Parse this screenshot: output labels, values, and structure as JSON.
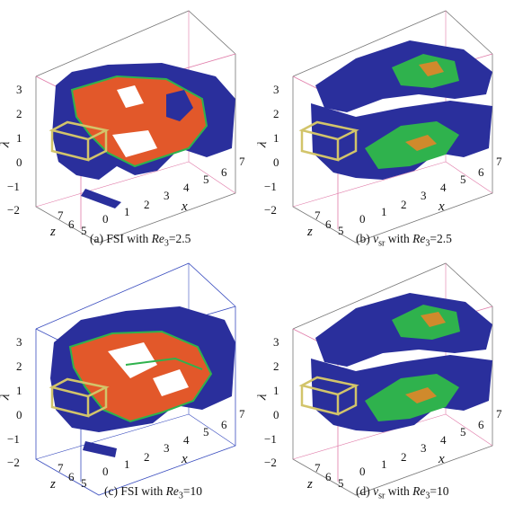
{
  "panels": [
    {
      "id": "a",
      "caption_prefix": "(a) FSI with ",
      "caption_sym": "Re",
      "caption_sub": "3",
      "caption_value": "=2.5",
      "kind": "FSI"
    },
    {
      "id": "b",
      "caption_prefix": "(b) ",
      "caption_sym": "Re",
      "caption_sub": "3",
      "caption_value": "=2.5",
      "nu": "ν",
      "nu_sub": "sr",
      "caption_with": " with ",
      "kind": "nu"
    },
    {
      "id": "c",
      "caption_prefix": "(c) FSI with ",
      "caption_sym": "Re",
      "caption_sub": "3",
      "caption_value": "=10",
      "kind": "FSI"
    },
    {
      "id": "d",
      "caption_prefix": "(d) ",
      "caption_sym": "Re",
      "caption_sub": "3",
      "caption_value": "=10",
      "nu": "ν",
      "nu_sub": "sr",
      "caption_with": " with ",
      "kind": "nu"
    }
  ],
  "axes": {
    "lambda_label": "λ",
    "lambda_ticks": [
      "3",
      "2",
      "1",
      "0",
      "−1",
      "−2"
    ],
    "x_label": "x",
    "x_ticks": [
      "0",
      "1",
      "2",
      "3",
      "4",
      "5",
      "6",
      "7"
    ],
    "z_label": "z",
    "z_ticks": [
      "7",
      "6",
      "5"
    ]
  },
  "colors": {
    "blue": "#2a2f9c",
    "red": "#e2582a",
    "green": "#2fb24d",
    "orange": "#d08a2c",
    "pink_box": "#e07aa8",
    "blue_box": "#3a4dbf",
    "yellow": "#d2c46a"
  }
}
